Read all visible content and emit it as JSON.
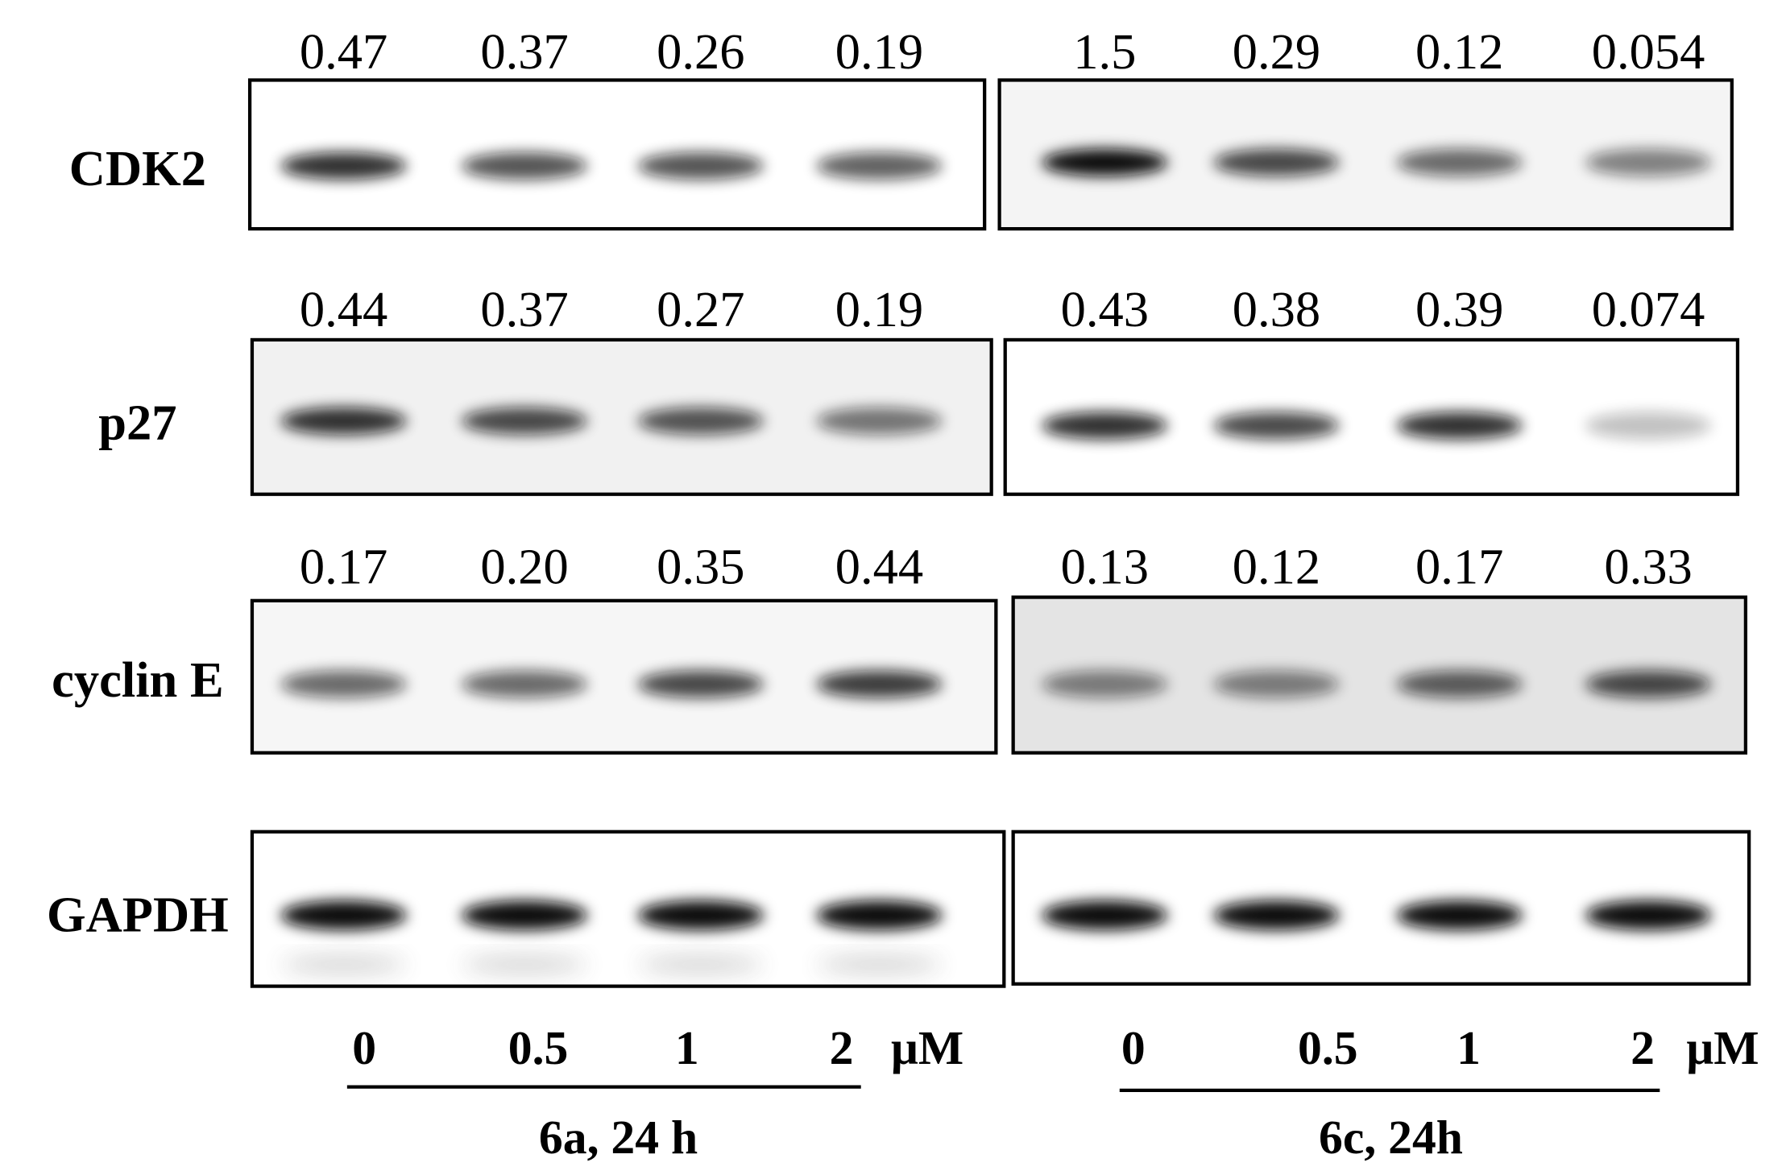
{
  "rows": [
    {
      "label": "CDK2",
      "left": [
        "0.47",
        "0.37",
        "0.26",
        "0.19"
      ],
      "right": [
        "1.5",
        "0.29",
        "0.12",
        "0.054"
      ]
    },
    {
      "label": "p27",
      "left": [
        "0.44",
        "0.37",
        "0.27",
        "0.19"
      ],
      "right": [
        "0.43",
        "0.38",
        "0.39",
        "0.074"
      ]
    },
    {
      "label": "cyclin E",
      "left": [
        "0.17",
        "0.20",
        "0.35",
        "0.44"
      ],
      "right": [
        "0.13",
        "0.12",
        "0.17",
        "0.33"
      ]
    },
    {
      "label": "GAPDH"
    }
  ],
  "panels": [
    {
      "doses": [
        "0",
        "0.5",
        "1",
        "2"
      ],
      "unit": "μM",
      "group": "6a, 24 h"
    },
    {
      "doses": [
        "0",
        "0.5",
        "1",
        "2"
      ],
      "unit": "μM",
      "group": "6c, 24h"
    }
  ]
}
